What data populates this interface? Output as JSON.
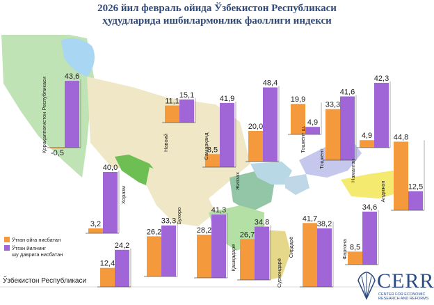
{
  "page": {
    "title_line1": "2026 йил февраль ойида Ўзбекистон Республикаси",
    "title_line2": "ҳудудларида ишбилармонлик фаоллиги индекси",
    "country_label": "Ўзбекистон Республикаси"
  },
  "legend": {
    "prev_month": "Ўтган ойга нисбатан",
    "prev_year_line1": "Ўтган йилнинг",
    "prev_year_line2": "шу даврига нисбатан"
  },
  "logo": {
    "text": "CERR",
    "sub_line1": "CENTER FOR ECONOMIC",
    "sub_line2": "RESEARCH AND REFORMS"
  },
  "colors": {
    "prev_month": "#f59a3c",
    "prev_year": "#a065d6",
    "title": "#2e4a7d"
  },
  "chart_data": {
    "type": "bar",
    "series": [
      {
        "name": "Ўтган ойга нисбатан",
        "values": [
          -0.5,
          11.1,
          8.5,
          20.0,
          19.9,
          33.3,
          4.9,
          44.8,
          3.2,
          26.2,
          28.2,
          26.7,
          41.7,
          8.5,
          12.4
        ]
      },
      {
        "name": "Ўтган йилнинг шу даврига нисбатан",
        "values": [
          43.6,
          15.1,
          41.9,
          48.4,
          4.9,
          41.6,
          42.3,
          12.5,
          40.0,
          33.3,
          41.3,
          34.8,
          38.2,
          34.6,
          24.2
        ]
      }
    ],
    "categories": [
      "Қорақалпоғистон Республикаси",
      "Навоий",
      "Самарқанд",
      "Жиззах",
      "Тошкент ш.",
      "Тошкент",
      "Наманган",
      "Андижон",
      "Хоразм",
      "Бухоро",
      "Қашқадарё",
      "Сурхондарё",
      "Сирдарё",
      "Фарғона",
      "Ўзбекистон Республикаси"
    ]
  }
}
